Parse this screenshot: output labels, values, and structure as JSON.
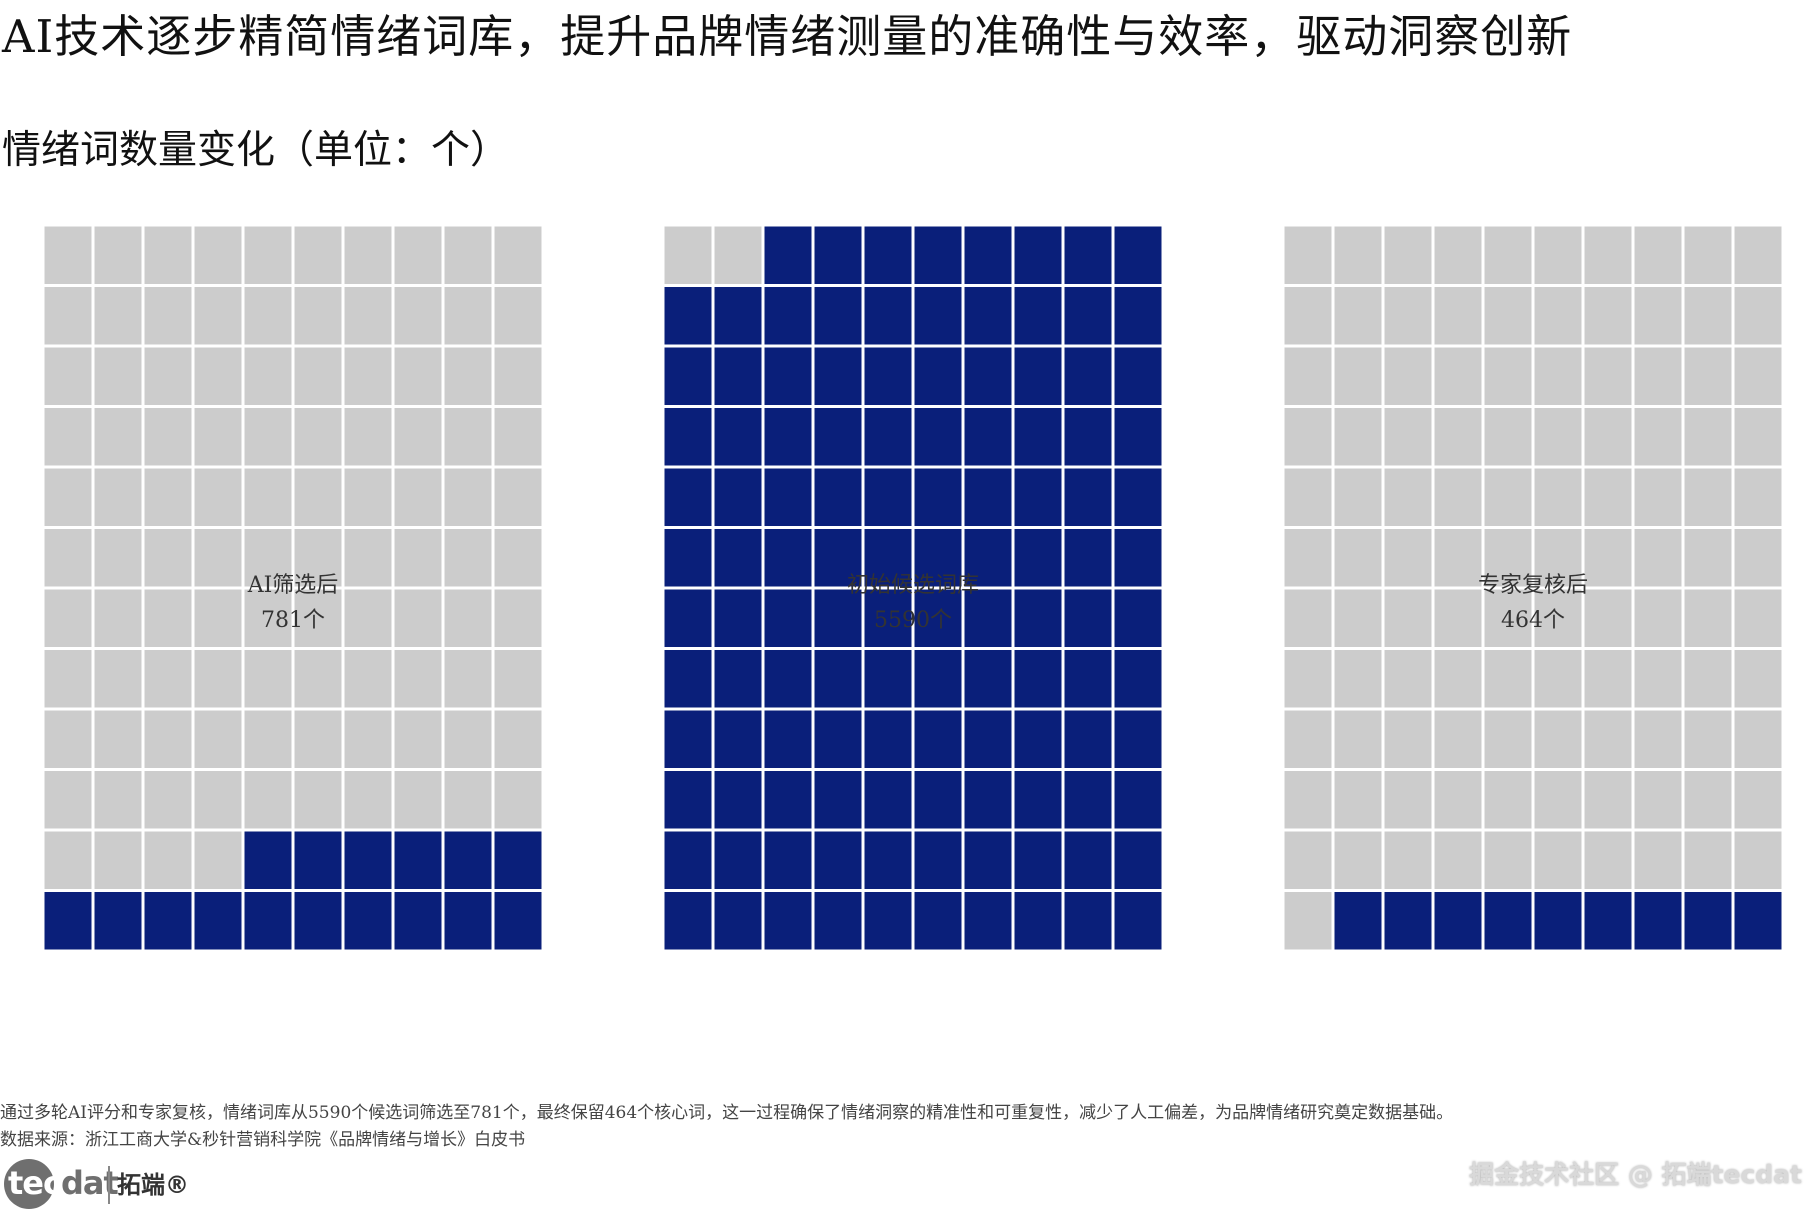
{
  "title": "AI技术逐步精简情绪词库，提升品牌情绪测量的准确性与效率，驱动洞察创新",
  "subtitle": "情绪词数量变化（单位：个）",
  "colors": {
    "filled": "#0a1f7a",
    "empty": "#cccccc",
    "gap": "#ffffff",
    "label": "#333333"
  },
  "chart_data": {
    "type": "waffle",
    "title": "情绪词数量变化（单位：个）",
    "grid": {
      "rows": 12,
      "cols": 10
    },
    "panels": [
      {
        "name": "AI筛选后",
        "value": 781,
        "value_label": "781个",
        "filled_cells": 16
      },
      {
        "name": "初始候选词库",
        "value": 5590,
        "value_label": "5590个",
        "filled_cells": 118
      },
      {
        "name": "专家复核后",
        "value": 464,
        "value_label": "464个",
        "filled_cells": 9
      }
    ]
  },
  "footnote": "通过多轮AI评分和专家复核，情绪词库从5590个候选词筛选至781个，最终保留464个核心词，这一过程确保了情绪洞察的精准性和可重复性，减少了人工偏差，为品牌情绪研究奠定数据基础。",
  "source": "数据来源：浙江工商大学&秒针营销科学院《品牌情绪与增长》白皮书",
  "logo": {
    "tec": "tec",
    "dat": "dat",
    "cn": "拓端®"
  },
  "watermark": "掘金技术社区 @ 拓端tecdat"
}
